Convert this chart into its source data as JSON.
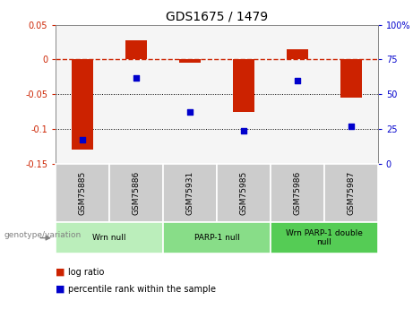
{
  "title": "GDS1675 / 1479",
  "samples": [
    "GSM75885",
    "GSM75886",
    "GSM75931",
    "GSM75985",
    "GSM75986",
    "GSM75987"
  ],
  "log_ratio": [
    -0.13,
    0.028,
    -0.005,
    -0.075,
    0.015,
    -0.055
  ],
  "percentile_rank": [
    17,
    62,
    37,
    24,
    60,
    27
  ],
  "groups": [
    {
      "label": "Wrn null",
      "start": 0,
      "end": 2,
      "color": "#bbeebb"
    },
    {
      "label": "PARP-1 null",
      "start": 2,
      "end": 4,
      "color": "#88dd88"
    },
    {
      "label": "Wrn PARP-1 double\nnull",
      "start": 4,
      "end": 6,
      "color": "#55cc55"
    }
  ],
  "ylim_left": [
    -0.15,
    0.05
  ],
  "ylim_right": [
    0,
    100
  ],
  "bar_color": "#cc2200",
  "dot_color": "#0000cc",
  "zero_line_color": "#cc2200",
  "dotted_line_color": "#000000",
  "plot_bg_color": "#f5f5f5",
  "label_area_color": "#cccccc",
  "legend_log_ratio_color": "#cc2200",
  "legend_percentile_color": "#0000cc",
  "title_fontsize": 10,
  "tick_fontsize": 7,
  "label_fontsize": 6.5,
  "group_fontsize": 6.5,
  "legend_fontsize": 7
}
